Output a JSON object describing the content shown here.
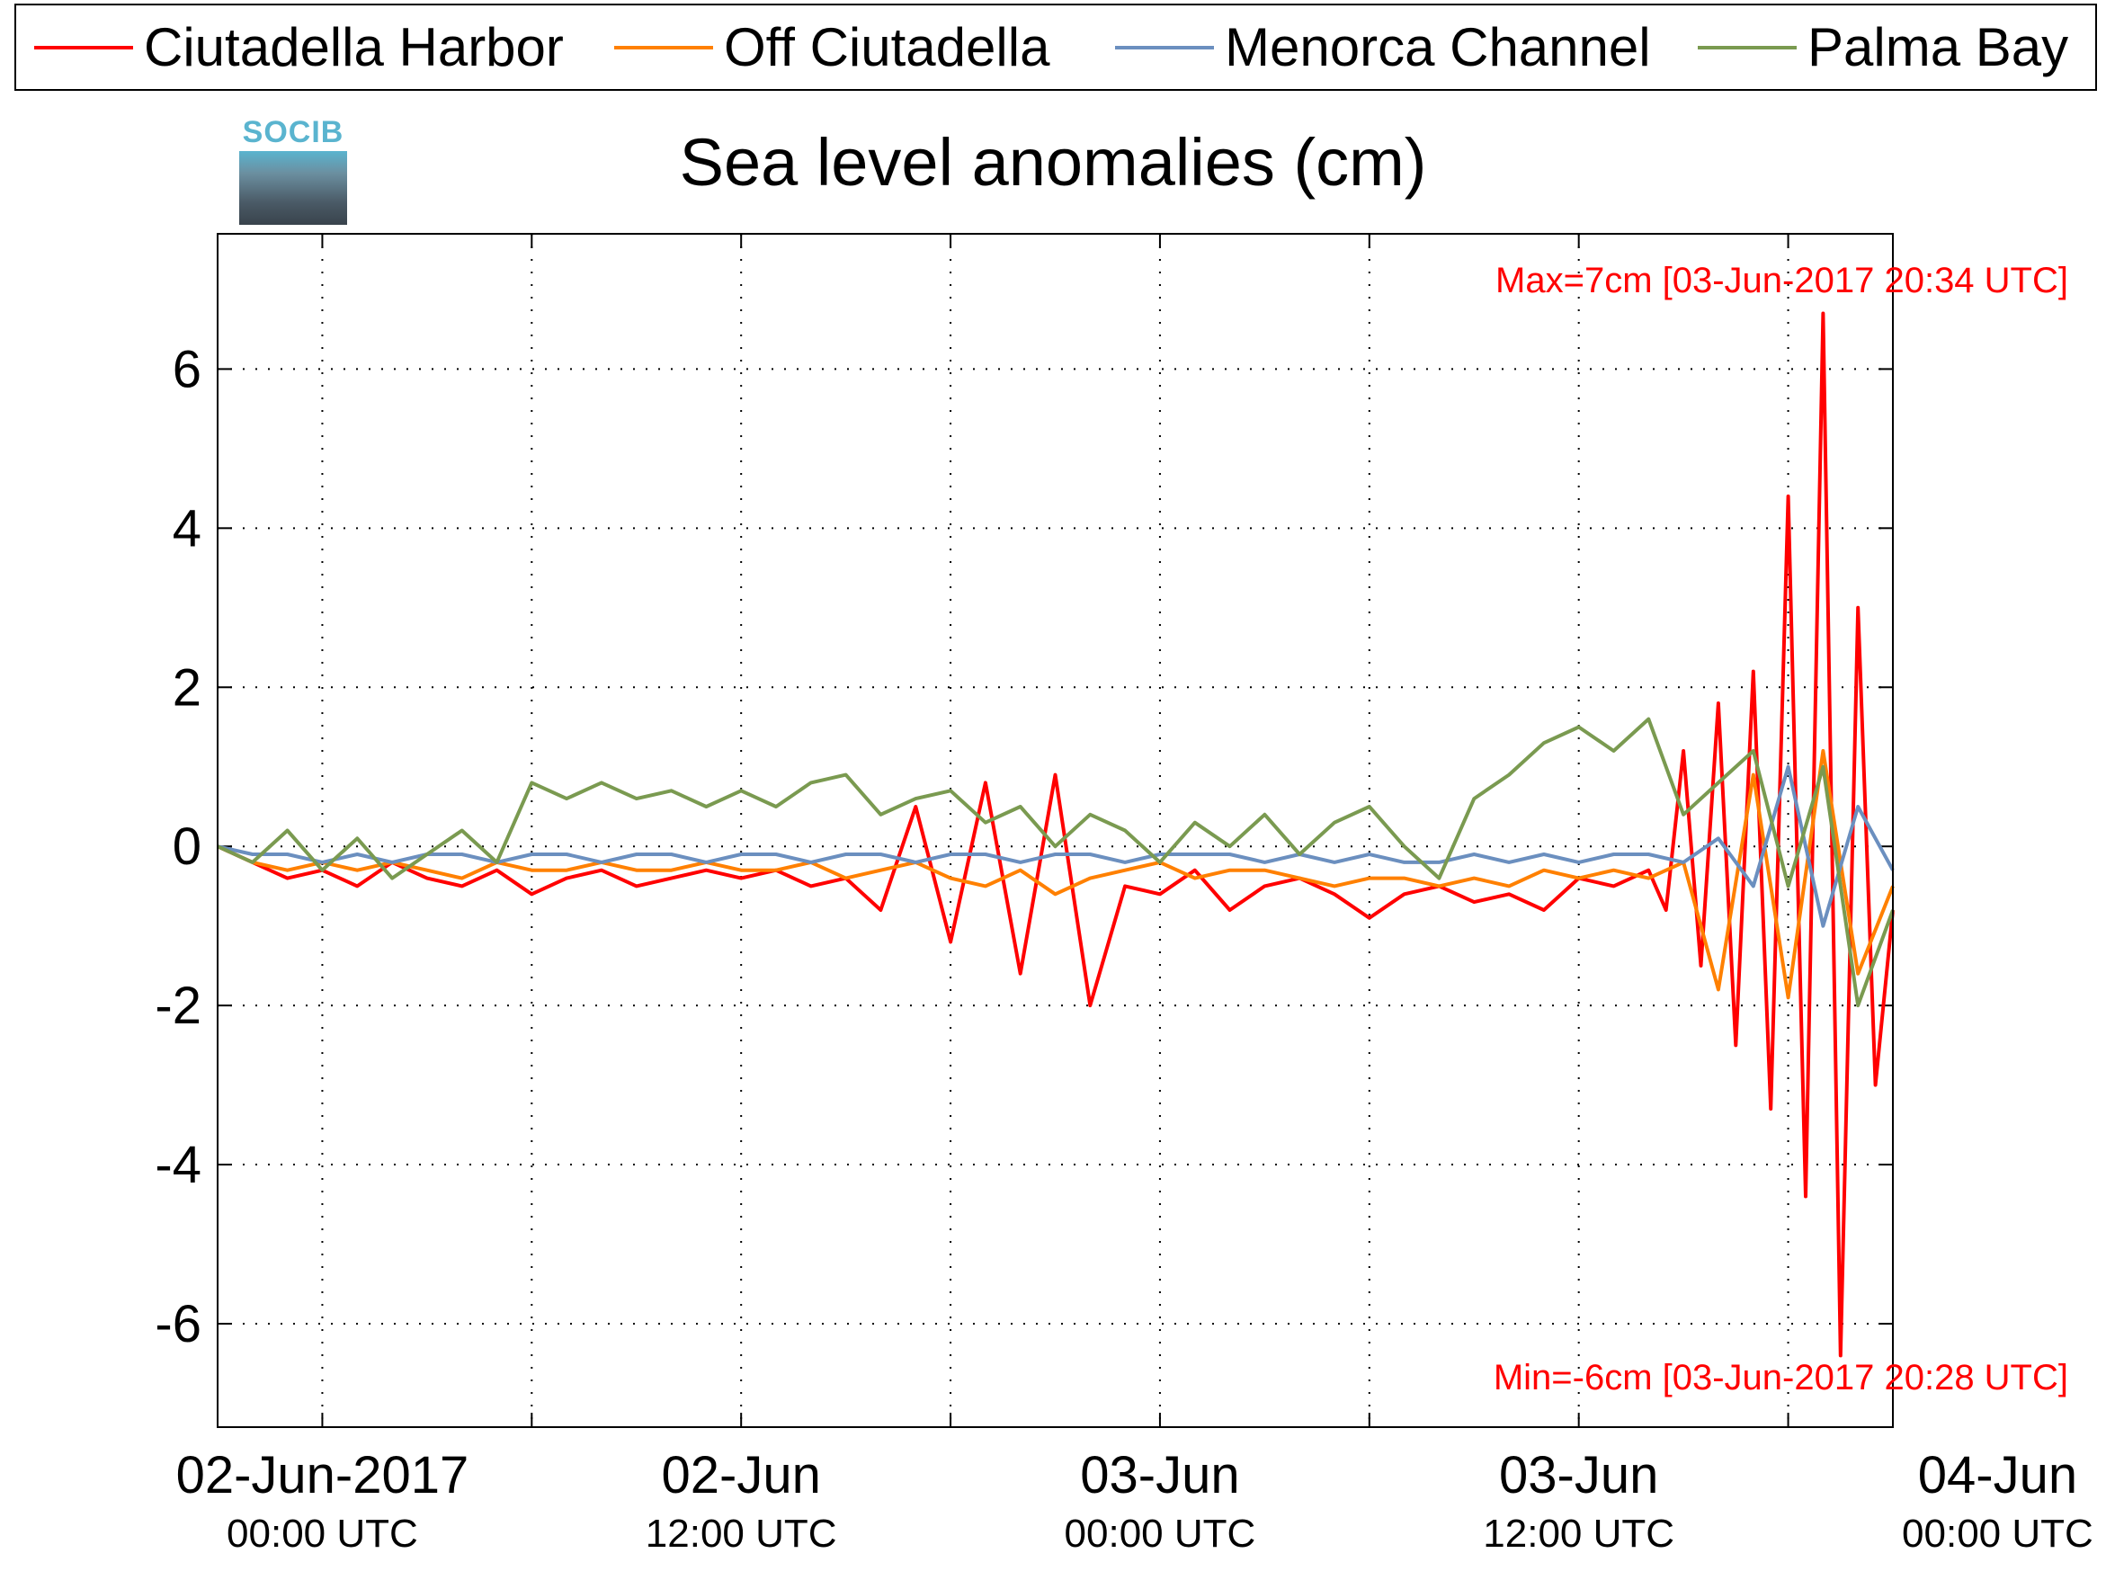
{
  "legend": [
    {
      "label": "Ciutadella Harbor",
      "color": "#ff0000"
    },
    {
      "label": "Off Ciutadella",
      "color": "#ff8000"
    },
    {
      "label": "Menorca Channel",
      "color": "#6b8fbf"
    },
    {
      "label": "Palma Bay",
      "color": "#7a9a50"
    }
  ],
  "logo": {
    "text": "SOCIB"
  },
  "annotations": {
    "max": "Max=7cm [03-Jun-2017 20:34 UTC]",
    "min": "Min=-6cm [03-Jun-2017 20:28 UTC]"
  },
  "chart_data": {
    "type": "line",
    "title": "Sea level anomalies (cm)",
    "xlabel": "",
    "ylabel": "",
    "x_unit": "hours since 02-Jun-2017 00:00 UTC",
    "xlim": [
      -3,
      45
    ],
    "ylim": [
      -7.3,
      7.7
    ],
    "yticks": [
      -6,
      -4,
      -2,
      0,
      2,
      4,
      6
    ],
    "ytick_labels": [
      "-6",
      "-4",
      "-2",
      "0",
      "2",
      "4",
      "6"
    ],
    "xticks_major": [
      0,
      12,
      24,
      36,
      48
    ],
    "xtick_labels": [
      {
        "line1": "02-Jun-2017",
        "line2": "00:00 UTC"
      },
      {
        "line1": "02-Jun",
        "line2": "12:00 UTC"
      },
      {
        "line1": "03-Jun",
        "line2": "00:00 UTC"
      },
      {
        "line1": "03-Jun",
        "line2": "12:00 UTC"
      },
      {
        "line1": "04-Jun",
        "line2": "00:00 UTC"
      }
    ],
    "grid": true,
    "legend_position": "top",
    "series": [
      {
        "name": "Ciutadella Harbor",
        "color": "#ff0000",
        "x": [
          -3,
          -2,
          -1,
          0,
          1,
          2,
          3,
          4,
          5,
          6,
          7,
          8,
          9,
          10,
          11,
          12,
          13,
          14,
          15,
          15.5,
          16,
          17,
          18,
          19,
          20,
          21,
          22,
          23,
          24,
          25,
          26,
          27,
          28,
          29,
          30,
          31,
          32,
          33,
          34,
          35,
          36,
          37,
          38,
          38.5,
          39,
          39.5,
          40,
          40.5,
          41,
          41.5,
          42,
          42.5,
          43,
          43.5,
          44,
          44.5,
          45
        ],
        "y": [
          0,
          -0.2,
          -0.4,
          -0.3,
          -0.5,
          -0.2,
          -0.4,
          -0.5,
          -0.3,
          -0.6,
          -0.4,
          -0.3,
          -0.5,
          -0.4,
          -0.3,
          -0.4,
          -0.3,
          -0.5,
          -0.4,
          -0.6,
          -0.8,
          0.5,
          -1.2,
          0.8,
          -1.6,
          0.9,
          -2.0,
          -0.5,
          -0.6,
          -0.3,
          -0.8,
          -0.5,
          -0.4,
          -0.6,
          -0.9,
          -0.6,
          -0.5,
          -0.7,
          -0.6,
          -0.8,
          -0.4,
          -0.5,
          -0.3,
          -0.8,
          1.2,
          -1.5,
          1.8,
          -2.5,
          2.2,
          -3.3,
          4.4,
          -4.4,
          6.7,
          -6.4,
          3.0,
          -3.0,
          -0.8
        ]
      },
      {
        "name": "Off Ciutadella",
        "color": "#ff8000",
        "x": [
          -3,
          -2,
          -1,
          0,
          1,
          2,
          3,
          4,
          5,
          6,
          7,
          8,
          9,
          10,
          11,
          12,
          13,
          14,
          15,
          16,
          17,
          18,
          19,
          20,
          21,
          22,
          23,
          24,
          25,
          26,
          27,
          28,
          29,
          30,
          31,
          32,
          33,
          34,
          35,
          36,
          37,
          38,
          39,
          40,
          41,
          42,
          43,
          44,
          45
        ],
        "y": [
          0,
          -0.2,
          -0.3,
          -0.2,
          -0.3,
          -0.2,
          -0.3,
          -0.4,
          -0.2,
          -0.3,
          -0.3,
          -0.2,
          -0.3,
          -0.3,
          -0.2,
          -0.3,
          -0.3,
          -0.2,
          -0.4,
          -0.3,
          -0.2,
          -0.4,
          -0.5,
          -0.3,
          -0.6,
          -0.4,
          -0.3,
          -0.2,
          -0.4,
          -0.3,
          -0.3,
          -0.4,
          -0.5,
          -0.4,
          -0.4,
          -0.5,
          -0.4,
          -0.5,
          -0.3,
          -0.4,
          -0.3,
          -0.4,
          -0.2,
          -1.8,
          0.9,
          -1.9,
          1.2,
          -1.6,
          -0.5
        ]
      },
      {
        "name": "Menorca Channel",
        "color": "#6b8fbf",
        "x": [
          -3,
          -2,
          -1,
          0,
          1,
          2,
          3,
          4,
          5,
          6,
          7,
          8,
          9,
          10,
          11,
          12,
          13,
          14,
          15,
          16,
          17,
          18,
          19,
          20,
          21,
          22,
          23,
          24,
          25,
          26,
          27,
          28,
          29,
          30,
          31,
          32,
          33,
          34,
          35,
          36,
          37,
          38,
          39,
          40,
          41,
          42,
          43,
          44,
          45
        ],
        "y": [
          0,
          -0.1,
          -0.1,
          -0.2,
          -0.1,
          -0.2,
          -0.1,
          -0.1,
          -0.2,
          -0.1,
          -0.1,
          -0.2,
          -0.1,
          -0.1,
          -0.2,
          -0.1,
          -0.1,
          -0.2,
          -0.1,
          -0.1,
          -0.2,
          -0.1,
          -0.1,
          -0.2,
          -0.1,
          -0.1,
          -0.2,
          -0.1,
          -0.1,
          -0.1,
          -0.2,
          -0.1,
          -0.2,
          -0.1,
          -0.2,
          -0.2,
          -0.1,
          -0.2,
          -0.1,
          -0.2,
          -0.1,
          -0.1,
          -0.2,
          0.1,
          -0.5,
          1.0,
          -1.0,
          0.5,
          -0.3
        ]
      },
      {
        "name": "Palma Bay",
        "color": "#7a9a50",
        "x": [
          -3,
          -2,
          -1,
          0,
          1,
          2,
          3,
          4,
          5,
          6,
          7,
          8,
          9,
          10,
          11,
          12,
          13,
          14,
          15,
          16,
          17,
          18,
          19,
          20,
          21,
          22,
          23,
          24,
          25,
          26,
          27,
          28,
          29,
          30,
          31,
          32,
          33,
          34,
          35,
          36,
          37,
          38,
          39,
          40,
          41,
          42,
          43,
          44,
          45
        ],
        "y": [
          0,
          -0.2,
          0.2,
          -0.3,
          0.1,
          -0.4,
          -0.1,
          0.2,
          -0.2,
          0.8,
          0.6,
          0.8,
          0.6,
          0.7,
          0.5,
          0.7,
          0.5,
          0.8,
          0.9,
          0.4,
          0.6,
          0.7,
          0.3,
          0.5,
          0.0,
          0.4,
          0.2,
          -0.2,
          0.3,
          0.0,
          0.4,
          -0.1,
          0.3,
          0.5,
          0.0,
          -0.4,
          0.6,
          0.9,
          1.3,
          1.5,
          1.2,
          1.6,
          0.4,
          0.8,
          1.2,
          -0.5,
          1.0,
          -2.0,
          -0.8
        ]
      }
    ]
  }
}
